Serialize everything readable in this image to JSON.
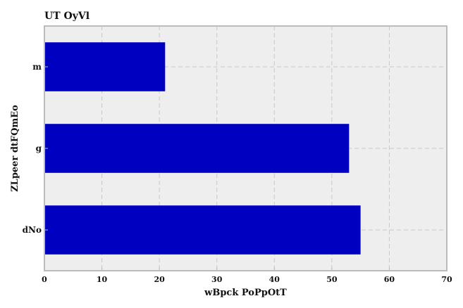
{
  "chart_data": {
    "type": "bar",
    "orientation": "horizontal",
    "title": "UT OyVl",
    "xlabel": "wBpck PoPpOtT",
    "ylabel": "ZLpeer dtFQmEo",
    "categories": [
      "dNo",
      "g",
      "m"
    ],
    "values": [
      55,
      53,
      21
    ],
    "xlim": [
      0,
      70
    ],
    "xticks": [
      0,
      10,
      20,
      30,
      40,
      50,
      60,
      70
    ],
    "grid": true,
    "legend": "none",
    "colors": {
      "bar": "#0000c0",
      "plot_background": "#eeeeee",
      "frame": "#bbbbbb",
      "grid": "#c8c8c8"
    }
  }
}
